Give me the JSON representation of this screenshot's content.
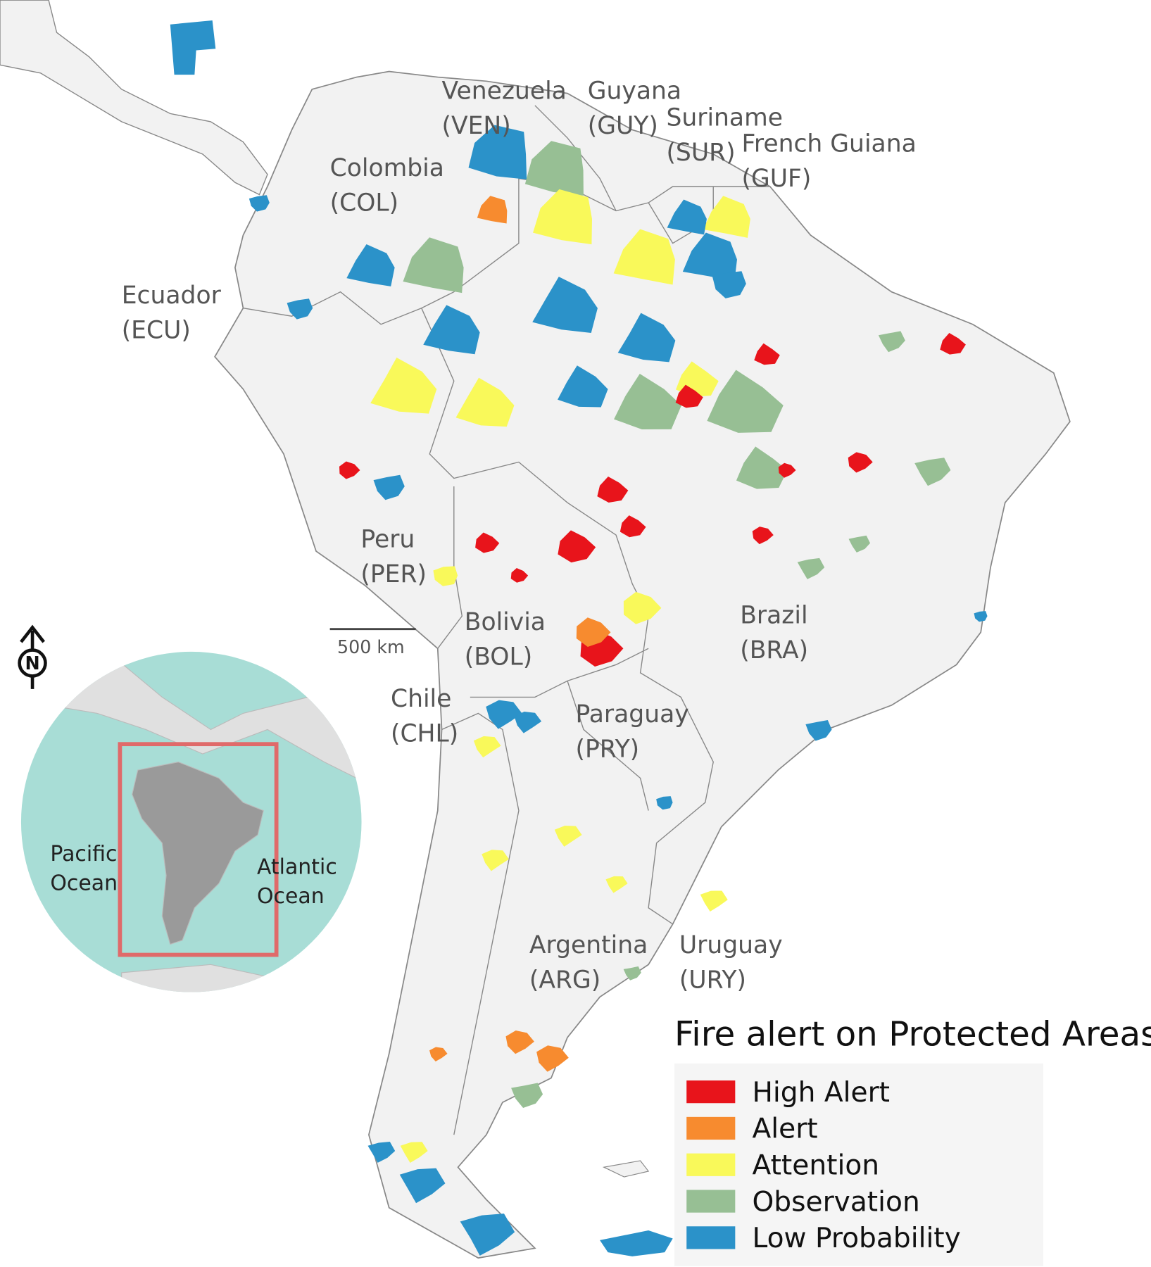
{
  "title": "Fire alert on Protected Areas",
  "legend": [
    {
      "label": "High Alert",
      "color": "#e8141b"
    },
    {
      "label": "Alert",
      "color": "#f78b2f"
    },
    {
      "label": "Attention",
      "color": "#f9f95a"
    },
    {
      "label": "Observation",
      "color": "#97bf94"
    },
    {
      "label": "Low Probability",
      "color": "#2b92c9"
    }
  ],
  "countries": [
    {
      "name": "Venezuela",
      "code": "(VEN)"
    },
    {
      "name": "Guyana",
      "code": "(GUY)"
    },
    {
      "name": "Suriname",
      "code": "(SUR)"
    },
    {
      "name": "French Guiana",
      "code": "(GUF)"
    },
    {
      "name": "Colombia",
      "code": "(COL)"
    },
    {
      "name": "Ecuador",
      "code": "(ECU)"
    },
    {
      "name": "Peru",
      "code": "(PER)"
    },
    {
      "name": "Bolivia",
      "code": "(BOL)"
    },
    {
      "name": "Chile",
      "code": "(CHL)"
    },
    {
      "name": "Paraguay",
      "code": "(PRY)"
    },
    {
      "name": "Brazil",
      "code": "(BRA)"
    },
    {
      "name": "Argentina",
      "code": "(ARG)"
    },
    {
      "name": "Uruguay",
      "code": "(URY)"
    }
  ],
  "scale_bar": "500 km",
  "north": "N",
  "inset": {
    "oceans": [
      {
        "lines": [
          "Pacific",
          "Ocean"
        ]
      },
      {
        "lines": [
          "Atlantic",
          "Ocean"
        ]
      }
    ]
  }
}
